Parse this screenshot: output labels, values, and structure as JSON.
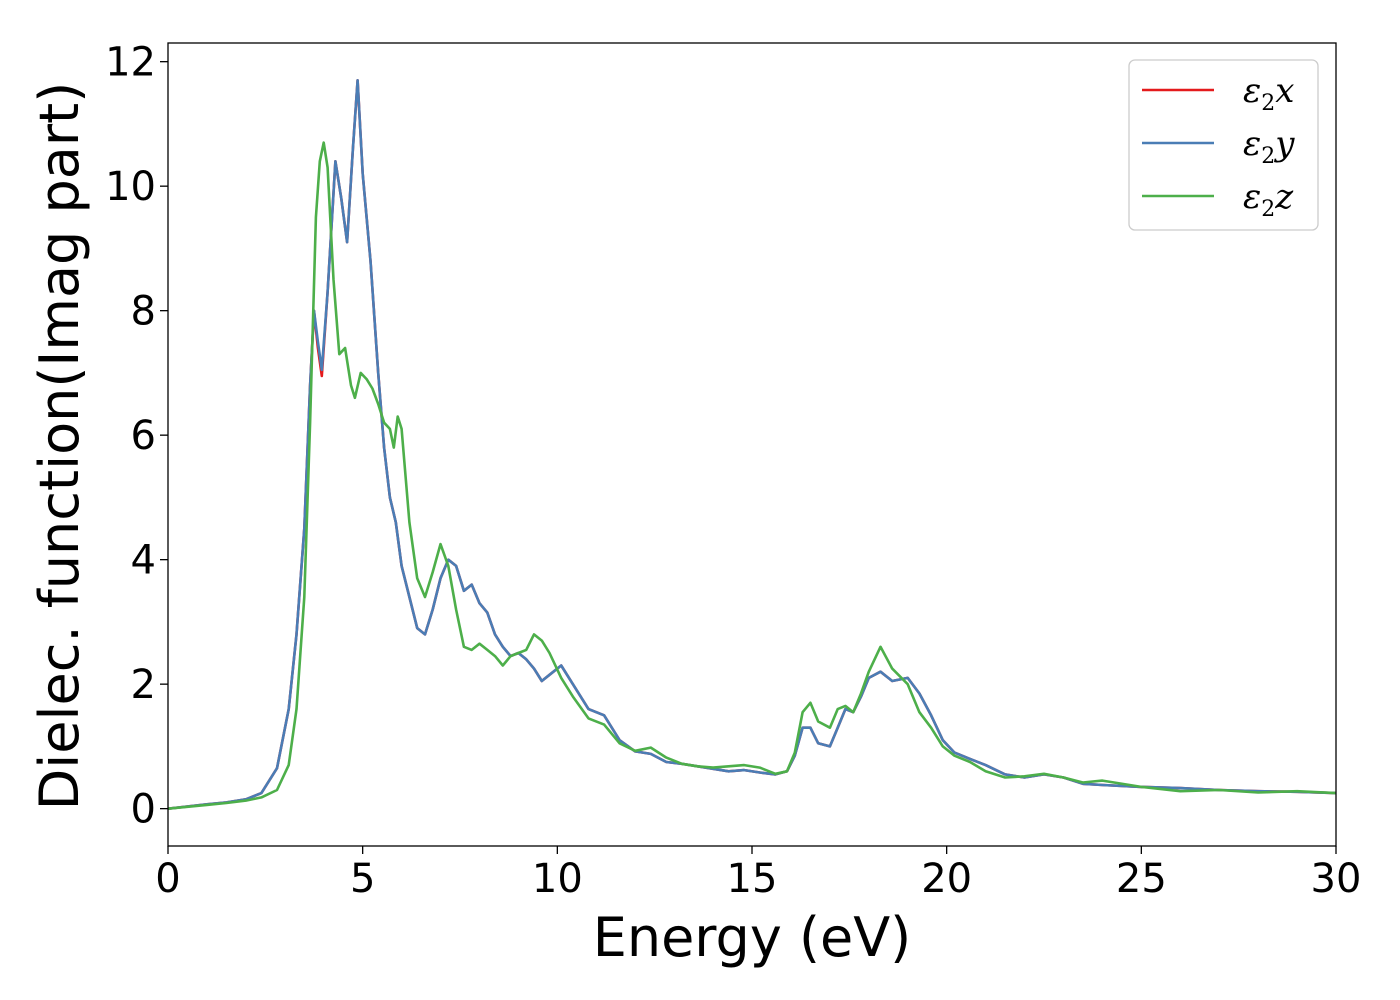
{
  "chart_data": {
    "type": "line",
    "xlabel": "Energy (eV)",
    "ylabel": "Dielec. function(Imag part)",
    "xlim": [
      0,
      30
    ],
    "ylim": [
      -0.6,
      12.3
    ],
    "xticks": [
      0,
      5,
      10,
      15,
      20,
      25,
      30
    ],
    "yticks": [
      0,
      2,
      4,
      6,
      8,
      10,
      12
    ],
    "grid": false,
    "legend_position": "top-right",
    "series": [
      {
        "name": "ε2x",
        "legend_base": "ε",
        "legend_sub": "2",
        "legend_var": "x",
        "color": "#e41a1c",
        "x": [
          0,
          1,
          1.5,
          2,
          2.4,
          2.8,
          3.1,
          3.3,
          3.5,
          3.65,
          3.75,
          3.85,
          3.95,
          4.1,
          4.3,
          4.45,
          4.6,
          4.75,
          4.87,
          5.0,
          5.2,
          5.4,
          5.55,
          5.7,
          5.85,
          6.0,
          6.2,
          6.4,
          6.6,
          6.8,
          7.0,
          7.2,
          7.4,
          7.6,
          7.8,
          8.0,
          8.2,
          8.4,
          8.6,
          8.8,
          9.0,
          9.2,
          9.4,
          9.6,
          9.8,
          10.1,
          10.4,
          10.8,
          11.2,
          11.6,
          12.0,
          12.4,
          12.8,
          13.2,
          13.6,
          14.0,
          14.4,
          14.8,
          15.2,
          15.6,
          15.9,
          16.1,
          16.3,
          16.5,
          16.7,
          17.0,
          17.2,
          17.4,
          17.6,
          17.8,
          18.0,
          18.3,
          18.6,
          19.0,
          19.3,
          19.6,
          19.9,
          20.2,
          20.6,
          21.0,
          21.5,
          22.0,
          22.5,
          23.0,
          23.5,
          24.0,
          25.0,
          26.0,
          27.0,
          28.0,
          29.0,
          30.0
        ],
        "y": [
          0,
          0.07,
          0.1,
          0.15,
          0.25,
          0.65,
          1.6,
          2.8,
          4.5,
          6.8,
          8.0,
          7.4,
          6.95,
          8.3,
          10.4,
          9.8,
          9.1,
          10.6,
          11.7,
          10.2,
          8.8,
          7.0,
          5.8,
          5.0,
          4.6,
          3.9,
          3.4,
          2.9,
          2.8,
          3.2,
          3.7,
          4.0,
          3.9,
          3.5,
          3.6,
          3.3,
          3.15,
          2.8,
          2.6,
          2.45,
          2.5,
          2.4,
          2.25,
          2.05,
          2.15,
          2.3,
          2.0,
          1.6,
          1.5,
          1.1,
          0.92,
          0.88,
          0.75,
          0.72,
          0.68,
          0.64,
          0.6,
          0.62,
          0.58,
          0.55,
          0.6,
          0.85,
          1.3,
          1.3,
          1.05,
          1.0,
          1.3,
          1.6,
          1.55,
          1.8,
          2.1,
          2.2,
          2.05,
          2.1,
          1.85,
          1.5,
          1.1,
          0.9,
          0.8,
          0.7,
          0.55,
          0.5,
          0.55,
          0.5,
          0.4,
          0.38,
          0.35,
          0.33,
          0.3,
          0.28,
          0.27,
          0.25
        ]
      },
      {
        "name": "ε2y",
        "legend_base": "ε",
        "legend_sub": "2",
        "legend_var": "y",
        "color": "#4a7db5",
        "x": [
          0,
          1,
          1.5,
          2,
          2.4,
          2.8,
          3.1,
          3.3,
          3.5,
          3.65,
          3.75,
          3.85,
          3.95,
          4.1,
          4.3,
          4.45,
          4.6,
          4.75,
          4.87,
          5.0,
          5.2,
          5.4,
          5.55,
          5.7,
          5.85,
          6.0,
          6.2,
          6.4,
          6.6,
          6.8,
          7.0,
          7.2,
          7.4,
          7.6,
          7.8,
          8.0,
          8.2,
          8.4,
          8.6,
          8.8,
          9.0,
          9.2,
          9.4,
          9.6,
          9.8,
          10.1,
          10.4,
          10.8,
          11.2,
          11.6,
          12.0,
          12.4,
          12.8,
          13.2,
          13.6,
          14.0,
          14.4,
          14.8,
          15.2,
          15.6,
          15.9,
          16.1,
          16.3,
          16.5,
          16.7,
          17.0,
          17.2,
          17.4,
          17.6,
          17.8,
          18.0,
          18.3,
          18.6,
          19.0,
          19.3,
          19.6,
          19.9,
          20.2,
          20.6,
          21.0,
          21.5,
          22.0,
          22.5,
          23.0,
          23.5,
          24.0,
          25.0,
          26.0,
          27.0,
          28.0,
          29.0,
          30.0
        ],
        "y": [
          0,
          0.07,
          0.1,
          0.15,
          0.25,
          0.65,
          1.6,
          2.8,
          4.5,
          6.8,
          8.0,
          7.5,
          7.05,
          8.3,
          10.4,
          9.8,
          9.1,
          10.6,
          11.7,
          10.2,
          8.8,
          7.0,
          5.8,
          5.0,
          4.6,
          3.9,
          3.4,
          2.9,
          2.8,
          3.2,
          3.7,
          4.0,
          3.9,
          3.5,
          3.6,
          3.3,
          3.15,
          2.8,
          2.6,
          2.45,
          2.5,
          2.4,
          2.25,
          2.05,
          2.15,
          2.3,
          2.0,
          1.6,
          1.5,
          1.1,
          0.92,
          0.88,
          0.75,
          0.72,
          0.68,
          0.64,
          0.6,
          0.62,
          0.58,
          0.55,
          0.6,
          0.85,
          1.3,
          1.3,
          1.05,
          1.0,
          1.3,
          1.6,
          1.55,
          1.8,
          2.1,
          2.2,
          2.05,
          2.1,
          1.85,
          1.5,
          1.1,
          0.9,
          0.8,
          0.7,
          0.55,
          0.5,
          0.55,
          0.5,
          0.4,
          0.38,
          0.35,
          0.33,
          0.3,
          0.28,
          0.27,
          0.25
        ]
      },
      {
        "name": "ε2z",
        "legend_base": "ε",
        "legend_sub": "2",
        "legend_var": "z",
        "color": "#4daf4a",
        "x": [
          0,
          1,
          1.5,
          2,
          2.4,
          2.8,
          3.1,
          3.3,
          3.5,
          3.65,
          3.8,
          3.9,
          4.0,
          4.1,
          4.25,
          4.4,
          4.55,
          4.7,
          4.8,
          4.95,
          5.1,
          5.25,
          5.4,
          5.55,
          5.7,
          5.8,
          5.9,
          6.0,
          6.2,
          6.4,
          6.6,
          6.8,
          7.0,
          7.2,
          7.4,
          7.6,
          7.8,
          8.0,
          8.2,
          8.4,
          8.6,
          8.8,
          9.0,
          9.2,
          9.4,
          9.6,
          9.8,
          10.1,
          10.4,
          10.8,
          11.2,
          11.6,
          12.0,
          12.4,
          12.8,
          13.2,
          13.6,
          14.0,
          14.4,
          14.8,
          15.2,
          15.6,
          15.9,
          16.1,
          16.3,
          16.5,
          16.7,
          17.0,
          17.2,
          17.4,
          17.6,
          17.8,
          18.0,
          18.3,
          18.6,
          19.0,
          19.3,
          19.6,
          19.9,
          20.2,
          20.6,
          21.0,
          21.5,
          22.0,
          22.5,
          23.0,
          23.5,
          24.0,
          25.0,
          26.0,
          27.0,
          28.0,
          29.0,
          30.0
        ],
        "y": [
          0,
          0.06,
          0.09,
          0.13,
          0.18,
          0.3,
          0.7,
          1.6,
          3.4,
          6.2,
          9.5,
          10.4,
          10.7,
          10.3,
          8.5,
          7.3,
          7.4,
          6.8,
          6.6,
          7.0,
          6.9,
          6.75,
          6.5,
          6.2,
          6.1,
          5.8,
          6.3,
          6.1,
          4.6,
          3.7,
          3.4,
          3.8,
          4.25,
          3.9,
          3.2,
          2.6,
          2.55,
          2.65,
          2.55,
          2.45,
          2.3,
          2.45,
          2.5,
          2.55,
          2.8,
          2.7,
          2.5,
          2.1,
          1.8,
          1.45,
          1.35,
          1.05,
          0.93,
          0.98,
          0.82,
          0.72,
          0.68,
          0.66,
          0.68,
          0.7,
          0.66,
          0.56,
          0.6,
          0.9,
          1.55,
          1.7,
          1.4,
          1.3,
          1.6,
          1.65,
          1.55,
          1.85,
          2.2,
          2.6,
          2.25,
          2.0,
          1.55,
          1.3,
          1.0,
          0.85,
          0.75,
          0.6,
          0.5,
          0.52,
          0.56,
          0.5,
          0.42,
          0.45,
          0.35,
          0.28,
          0.3,
          0.26,
          0.28,
          0.25
        ]
      }
    ]
  }
}
